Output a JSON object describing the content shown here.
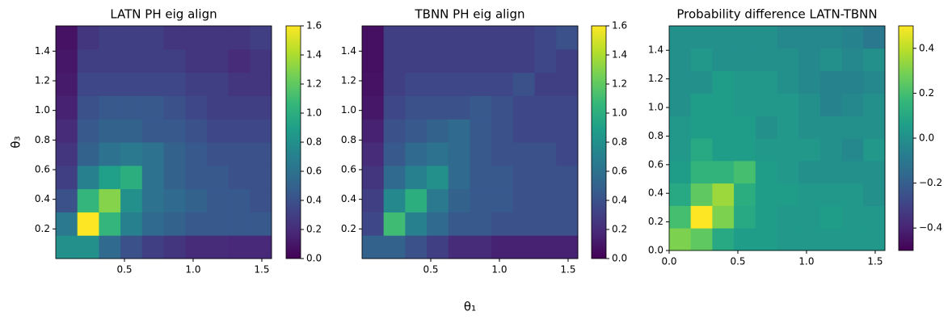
{
  "chart_data": [
    {
      "type": "heatmap",
      "title": "LATN PH eig align",
      "ylabel": "θ₃",
      "colormap": "viridis",
      "xbins": [
        0,
        0.1571,
        0.3142,
        0.4712,
        0.6283,
        0.7854,
        0.9425,
        1.0996,
        1.2566,
        1.4137,
        1.5708
      ],
      "ybins": [
        0,
        0.1571,
        0.3142,
        0.4712,
        0.6283,
        0.7854,
        0.9425,
        1.0996,
        1.2566,
        1.4137,
        1.5708
      ],
      "values": [
        [
          0.8,
          0.8,
          0.55,
          0.4,
          0.3,
          0.25,
          0.2,
          0.2,
          0.18,
          0.18
        ],
        [
          0.65,
          1.6,
          1.05,
          0.7,
          0.55,
          0.5,
          0.45,
          0.45,
          0.45,
          0.45
        ],
        [
          0.4,
          1.05,
          1.3,
          0.8,
          0.6,
          0.55,
          0.5,
          0.45,
          0.45,
          0.4
        ],
        [
          0.3,
          0.7,
          0.9,
          1.0,
          0.6,
          0.5,
          0.45,
          0.45,
          0.4,
          0.4
        ],
        [
          0.25,
          0.5,
          0.6,
          0.65,
          0.6,
          0.5,
          0.45,
          0.4,
          0.4,
          0.4
        ],
        [
          0.2,
          0.45,
          0.5,
          0.5,
          0.45,
          0.45,
          0.4,
          0.35,
          0.35,
          0.35
        ],
        [
          0.15,
          0.4,
          0.45,
          0.45,
          0.45,
          0.4,
          0.35,
          0.3,
          0.3,
          0.3
        ],
        [
          0.12,
          0.35,
          0.35,
          0.35,
          0.35,
          0.35,
          0.3,
          0.3,
          0.25,
          0.25
        ],
        [
          0.1,
          0.3,
          0.3,
          0.3,
          0.3,
          0.3,
          0.25,
          0.25,
          0.2,
          0.25
        ],
        [
          0.08,
          0.25,
          0.3,
          0.3,
          0.3,
          0.25,
          0.25,
          0.25,
          0.25,
          0.3
        ]
      ],
      "xlim": [
        0,
        1.5708
      ],
      "ylim": [
        0,
        1.5708
      ],
      "xticks": [
        0.5,
        {
          "value": 1,
          "label": "1.0"
        },
        1.5
      ],
      "yticks": [
        0.2,
        0.4,
        0.6,
        0.8,
        {
          "value": 1,
          "label": "1.0"
        },
        1.2,
        1.4
      ],
      "clim": [
        0,
        1.6
      ],
      "cticks": [
        {
          "value": 0,
          "label": "0.0"
        },
        0.2,
        0.4,
        0.6,
        0.8,
        {
          "value": 1,
          "label": "1.0"
        },
        1.2,
        1.4,
        1.6
      ]
    },
    {
      "type": "heatmap",
      "title": "TBNN PH eig align",
      "xlabel": "θ₁",
      "colormap": "viridis",
      "xbins": [
        0,
        0.1571,
        0.3142,
        0.4712,
        0.6283,
        0.7854,
        0.9425,
        1.0996,
        1.2566,
        1.4137,
        1.5708
      ],
      "ybins": [
        0,
        0.1571,
        0.3142,
        0.4712,
        0.6283,
        0.7854,
        0.9425,
        1.0996,
        1.2566,
        1.4137,
        1.5708
      ],
      "values": [
        [
          0.5,
          0.5,
          0.4,
          0.3,
          0.2,
          0.2,
          0.15,
          0.15,
          0.15,
          0.15
        ],
        [
          0.35,
          1.1,
          0.7,
          0.55,
          0.45,
          0.45,
          0.4,
          0.4,
          0.4,
          0.4
        ],
        [
          0.3,
          0.75,
          1.0,
          0.65,
          0.5,
          0.45,
          0.45,
          0.4,
          0.4,
          0.4
        ],
        [
          0.25,
          0.55,
          0.7,
          0.8,
          0.55,
          0.45,
          0.45,
          0.4,
          0.4,
          0.4
        ],
        [
          0.2,
          0.45,
          0.55,
          0.6,
          0.55,
          0.45,
          0.4,
          0.4,
          0.4,
          0.35
        ],
        [
          0.15,
          0.4,
          0.45,
          0.5,
          0.55,
          0.45,
          0.4,
          0.35,
          0.35,
          0.35
        ],
        [
          0.1,
          0.35,
          0.4,
          0.4,
          0.4,
          0.45,
          0.4,
          0.35,
          0.35,
          0.35
        ],
        [
          0.08,
          0.3,
          0.35,
          0.35,
          0.35,
          0.35,
          0.35,
          0.4,
          0.3,
          0.3
        ],
        [
          0.07,
          0.3,
          0.3,
          0.3,
          0.3,
          0.3,
          0.3,
          0.3,
          0.35,
          0.3
        ],
        [
          0.07,
          0.3,
          0.3,
          0.3,
          0.3,
          0.3,
          0.3,
          0.3,
          0.35,
          0.4
        ]
      ],
      "xlim": [
        0,
        1.5708
      ],
      "ylim": [
        0,
        1.5708
      ],
      "xticks": [
        0.5,
        {
          "value": 1,
          "label": "1.0"
        },
        1.5
      ],
      "yticks": [
        0.2,
        0.4,
        0.6,
        0.8,
        {
          "value": 1,
          "label": "1.0"
        },
        1.2,
        1.4
      ],
      "clim": [
        0,
        1.6
      ],
      "cticks": [
        {
          "value": 0,
          "label": "0.0"
        },
        0.2,
        0.4,
        0.6,
        0.8,
        {
          "value": 1,
          "label": "1.0"
        },
        1.2,
        1.4,
        1.6
      ]
    },
    {
      "type": "heatmap",
      "title": "Probability difference LATN-TBNN",
      "colormap": "viridis",
      "xbins": [
        0,
        0.1571,
        0.3142,
        0.4712,
        0.6283,
        0.7854,
        0.9425,
        1.0996,
        1.2566,
        1.4137,
        1.5708
      ],
      "ybins": [
        0,
        0.1571,
        0.3142,
        0.4712,
        0.6283,
        0.7854,
        0.9425,
        1.0996,
        1.2566,
        1.4137,
        1.5708
      ],
      "values": [
        [
          0.3,
          0.25,
          0.1,
          0.05,
          0.05,
          0.03,
          0.03,
          0.03,
          0.03,
          0.03
        ],
        [
          0.2,
          0.5,
          0.3,
          0.1,
          0.05,
          0.03,
          0.03,
          0.05,
          0.03,
          0.03
        ],
        [
          0.1,
          0.25,
          0.35,
          0.12,
          0.05,
          0.05,
          0.03,
          0.03,
          0.03,
          0
        ],
        [
          0.05,
          0.15,
          0.15,
          0.2,
          0.05,
          0.03,
          0,
          0,
          0,
          0
        ],
        [
          0.03,
          0.1,
          0.05,
          0.05,
          0.03,
          0.03,
          0.03,
          0,
          -0.03,
          0.03
        ],
        [
          0.03,
          0.05,
          0.05,
          0.05,
          0,
          0.03,
          0,
          0,
          0,
          0
        ],
        [
          0,
          0.05,
          0.05,
          0.03,
          0.03,
          0.03,
          0,
          -0.05,
          -0.03,
          0
        ],
        [
          0,
          0,
          0.05,
          0.03,
          0.03,
          0,
          -0.03,
          -0.05,
          -0.05,
          -0.03
        ],
        [
          0,
          0.03,
          0,
          0,
          0,
          0,
          -0.03,
          0,
          -0.03,
          0
        ],
        [
          0,
          0,
          0,
          0,
          0,
          -0.03,
          -0.03,
          -0.03,
          -0.05,
          -0.1
        ]
      ],
      "xlim": [
        0,
        1.5708
      ],
      "ylim": [
        0,
        1.5708
      ],
      "xticks": [
        {
          "value": 0,
          "label": "0.0"
        },
        0.5,
        {
          "value": 1,
          "label": "1.0"
        },
        1.5
      ],
      "yticks": [
        {
          "value": 0,
          "label": "0.0"
        },
        0.2,
        0.4,
        0.6,
        0.8,
        {
          "value": 1,
          "label": "1.0"
        },
        1.2,
        1.4
      ],
      "clim": [
        -0.5,
        0.5
      ],
      "cticks": [
        {
          "value": -0.4,
          "label": "−0.4"
        },
        {
          "value": -0.2,
          "label": "−0.2"
        },
        {
          "value": 0,
          "label": "0.0"
        },
        0.2,
        0.4
      ]
    }
  ]
}
